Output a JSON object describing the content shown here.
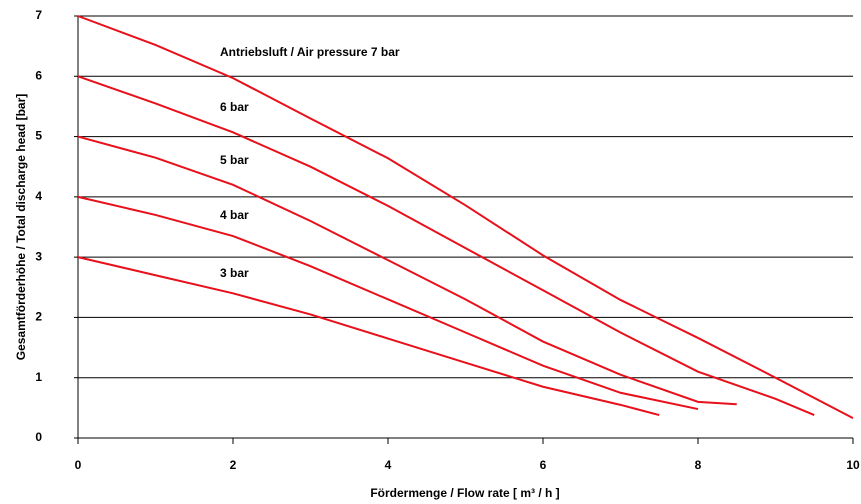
{
  "chart_data": {
    "type": "line",
    "xlabel": "Fördermenge / Flow rate [ m³ / h ]",
    "ylabel": "Gesamtförderhöhe / Total discharge head [bar]",
    "xlim": [
      0,
      10
    ],
    "ylim": [
      0,
      7
    ],
    "xticks": [
      0,
      2,
      4,
      6,
      8,
      10
    ],
    "yticks": [
      0,
      1,
      2,
      3,
      4,
      5,
      6,
      7
    ],
    "grid": true,
    "annotations": [
      "Antriebsluft / Air pressure 7 bar",
      "6 bar",
      "5 bar",
      "4 bar",
      "3 bar"
    ],
    "series": [
      {
        "color": "#e8101a",
        "x": [
          0,
          1,
          2,
          3,
          4,
          5,
          6,
          7,
          8,
          9,
          10
        ],
        "values": [
          7,
          6.52,
          5.97,
          5.3,
          4.64,
          3.86,
          3.03,
          2.29,
          1.66,
          1.0,
          0.33
        ]
      },
      {
        "color": "#e8101a",
        "x": [
          0,
          1,
          2,
          3,
          4,
          5,
          6,
          7,
          8,
          9,
          9.5
        ],
        "values": [
          6,
          5.55,
          5.07,
          4.5,
          3.85,
          3.15,
          2.45,
          1.75,
          1.1,
          0.65,
          0.38
        ]
      },
      {
        "color": "#e8101a",
        "x": [
          0,
          1,
          2,
          3,
          4,
          5,
          6,
          7,
          8,
          8.5
        ],
        "values": [
          5,
          4.65,
          4.2,
          3.6,
          2.95,
          2.3,
          1.6,
          1.05,
          0.6,
          0.56
        ]
      },
      {
        "color": "#e8101a",
        "x": [
          0,
          1,
          2,
          3,
          4,
          5,
          6,
          7,
          8
        ],
        "values": [
          4,
          3.7,
          3.35,
          2.85,
          2.3,
          1.75,
          1.2,
          0.75,
          0.48
        ]
      },
      {
        "color": "#e8101a",
        "x": [
          0,
          1,
          2,
          3,
          4,
          5,
          6,
          7,
          7.5
        ],
        "values": [
          3,
          2.7,
          2.4,
          2.05,
          1.65,
          1.25,
          0.85,
          0.55,
          0.38
        ]
      }
    ]
  }
}
